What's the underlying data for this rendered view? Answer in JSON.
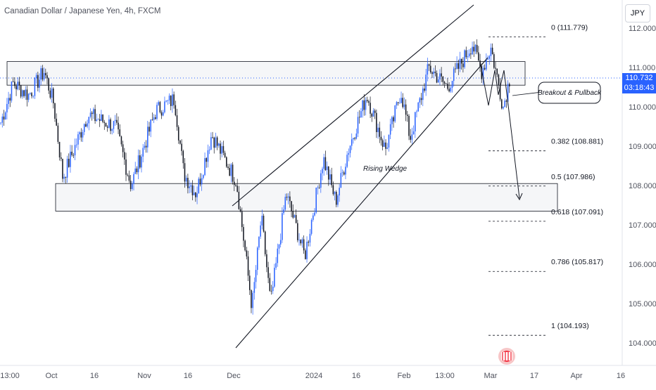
{
  "title": "Canadian Dollar / Japanese Yen, 4h, FXCM",
  "currency": "JPY",
  "current_price": "110.732",
  "countdown": "03:18:43",
  "colors": {
    "up": "#2962ff",
    "down": "#131722",
    "accent": "#2962ff",
    "zone_border": "#131722",
    "fib_line": "#131722"
  },
  "icons": {
    "logo": "tradingview-replay-icon"
  },
  "chart_data": {
    "type": "candlestick",
    "title": "Canadian Dollar / Japanese Yen, 4h, FXCM",
    "ylim": [
      103.6,
      112.4
    ],
    "y_ticks": [
      "112.000",
      "111.000",
      "110.000",
      "109.000",
      "108.000",
      "107.000",
      "106.000",
      "105.000",
      "104.000"
    ],
    "x_ticks": [
      "13:00",
      "Oct",
      "16",
      "Nov",
      "16",
      "Dec",
      "2024",
      "16",
      "Feb",
      "13:00",
      "Mar",
      "17",
      "Apr",
      "16"
    ],
    "path_waypoints": [
      [
        0,
        109.6
      ],
      [
        0.02,
        110.6
      ],
      [
        0.045,
        110.3
      ],
      [
        0.07,
        110.9
      ],
      [
        0.085,
        110.1
      ],
      [
        0.1,
        108.2
      ],
      [
        0.14,
        109.8
      ],
      [
        0.185,
        109.5
      ],
      [
        0.21,
        108.0
      ],
      [
        0.25,
        109.9
      ],
      [
        0.28,
        110.2
      ],
      [
        0.295,
        108.3
      ],
      [
        0.315,
        107.8
      ],
      [
        0.34,
        109.3
      ],
      [
        0.38,
        108.1
      ],
      [
        0.405,
        104.9
      ],
      [
        0.42,
        107.2
      ],
      [
        0.435,
        105.0
      ],
      [
        0.46,
        107.8
      ],
      [
        0.49,
        106.2
      ],
      [
        0.52,
        108.7
      ],
      [
        0.54,
        107.6
      ],
      [
        0.56,
        108.9
      ],
      [
        0.59,
        110.3
      ],
      [
        0.62,
        108.9
      ],
      [
        0.645,
        110.4
      ],
      [
        0.66,
        109.2
      ],
      [
        0.69,
        111.0
      ],
      [
        0.72,
        110.5
      ],
      [
        0.76,
        111.6
      ],
      [
        0.775,
        110.9
      ],
      [
        0.79,
        111.5
      ],
      [
        0.81,
        110.0
      ],
      [
        0.82,
        110.7
      ]
    ],
    "fib_levels": [
      {
        "label": "0 (111.779)",
        "value": 111.779
      },
      {
        "label": "0.382 (108.881)",
        "value": 108.881
      },
      {
        "label": "0.5 (107.986)",
        "value": 107.986
      },
      {
        "label": "0.618 (107.091)",
        "value": 107.091
      },
      {
        "label": "0.786 (105.817)",
        "value": 105.817
      },
      {
        "label": "1 (104.193)",
        "value": 104.193
      }
    ],
    "zones": [
      {
        "from": 110.55,
        "to": 111.15
      },
      {
        "from": 107.35,
        "to": 108.05
      }
    ],
    "annotations": {
      "wedge": "Rising Wedge",
      "callout": "Breakout & Pullback"
    }
  }
}
